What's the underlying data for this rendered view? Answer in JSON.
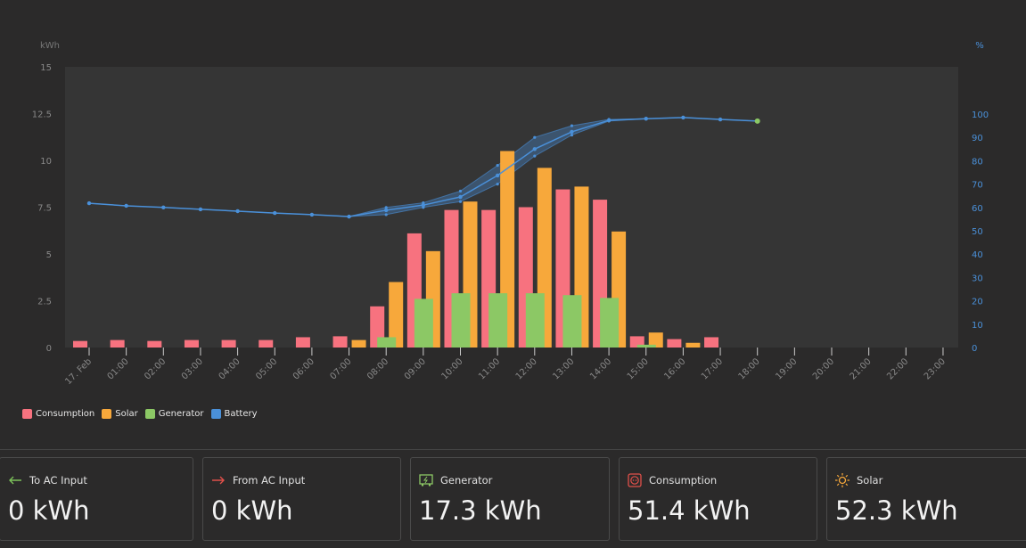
{
  "chart_data": {
    "type": "bar",
    "left_axis_unit": "kWh",
    "right_axis_unit": "%",
    "ylim": [
      0,
      15
    ],
    "yticks": [
      "0",
      "2.5",
      "5",
      "7.5",
      "10",
      "12.5",
      "15"
    ],
    "y2lim": [
      0,
      100
    ],
    "y2ticks": [
      "0",
      "10",
      "20",
      "30",
      "40",
      "50",
      "60",
      "70",
      "80",
      "90",
      "100"
    ],
    "categories": [
      "17. Feb",
      "01:00",
      "02:00",
      "03:00",
      "04:00",
      "05:00",
      "06:00",
      "07:00",
      "08:00",
      "09:00",
      "10:00",
      "11:00",
      "12:00",
      "13:00",
      "14:00",
      "15:00",
      "16:00",
      "17:00",
      "18:00",
      "19:00",
      "20:00",
      "21:00",
      "22:00",
      "23:00"
    ],
    "series": [
      {
        "name": "Consumption",
        "color": "#f7727f",
        "values": [
          0.35,
          0.4,
          0.35,
          0.4,
          0.4,
          0.4,
          0.55,
          0.6,
          2.2,
          6.1,
          7.35,
          7.35,
          7.5,
          8.45,
          7.9,
          0.6,
          0.45,
          0.55,
          null,
          null,
          null,
          null,
          null,
          null
        ]
      },
      {
        "name": "Solar",
        "color": "#f7a83b",
        "values": [
          0,
          0,
          0,
          0,
          0,
          0,
          0,
          0.4,
          3.5,
          5.15,
          7.8,
          10.5,
          9.6,
          8.6,
          6.2,
          0.8,
          0.25,
          0,
          null,
          null,
          null,
          null,
          null,
          null
        ]
      },
      {
        "name": "Generator",
        "color": "#8cc865",
        "values": [
          0,
          0,
          0,
          0,
          0,
          0,
          0,
          0,
          0.55,
          2.6,
          2.9,
          2.9,
          2.9,
          2.8,
          2.65,
          0.15,
          0,
          0,
          null,
          null,
          null,
          null,
          null,
          null
        ]
      },
      {
        "name": "Battery",
        "color": "#4a90d9",
        "axis": "right",
        "type": "line",
        "values": [
          61.8,
          60.7,
          60,
          59.2,
          58.4,
          57.6,
          56.9,
          56.1,
          58.8,
          61,
          64.5,
          73.7,
          85,
          92.4,
          97.3,
          98,
          98.5,
          97.7,
          97,
          null,
          null,
          null,
          null,
          null
        ],
        "min": [
          61.8,
          60.7,
          60,
          59.2,
          58.4,
          57.6,
          56.9,
          56.1,
          56.9,
          60,
          62.5,
          70,
          82,
          91,
          97,
          98,
          98.5,
          97.7,
          97,
          null,
          null,
          null,
          null,
          null
        ],
        "max": [
          61.8,
          60.7,
          60,
          59.2,
          58.4,
          57.6,
          56.9,
          56.1,
          60,
          62,
          67,
          78,
          90,
          95,
          97.7,
          98,
          98.5,
          97.7,
          97,
          null,
          null,
          null,
          null,
          null
        ]
      }
    ],
    "legend": "bottom-left"
  },
  "summary": [
    {
      "label": "To AC Input",
      "value": "0 kWh",
      "icon": "arrow-left-icon",
      "color": "#7cc15a"
    },
    {
      "label": "From AC Input",
      "value": "0 kWh",
      "icon": "arrow-right-icon",
      "color": "#e0504a"
    },
    {
      "label": "Generator",
      "value": "17.3 kWh",
      "icon": "generator-icon",
      "color": "#8cc865"
    },
    {
      "label": "Consumption",
      "value": "51.4 kWh",
      "icon": "socket-icon",
      "color": "#e0504a"
    },
    {
      "label": "Solar",
      "value": "52.3 kWh",
      "icon": "sun-icon",
      "color": "#f7a83b"
    }
  ]
}
